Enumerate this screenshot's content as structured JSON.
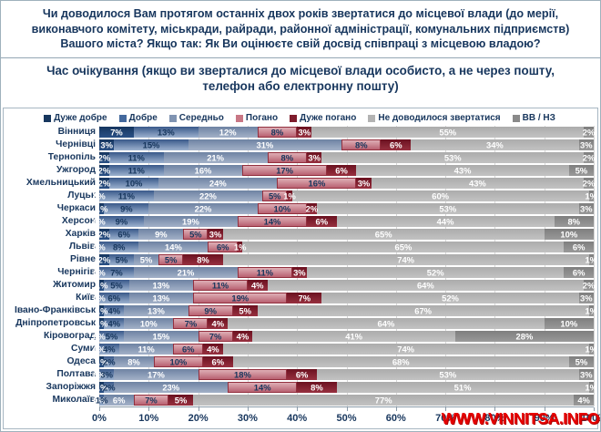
{
  "header": {
    "question": "Чи доводилося Вам протягом останніх двох років звертатися до місцевої влади (до мерії, виконавчого комітету, міськради, райради, районної адміністрації, комунальних підприємств) Вашого міста? Якщо так: Як Ви оцінюєте свій досвід співпраці з місцевою владою?",
    "subtitle": "Час очікування (якщо ви зверталися до місцевої влади особисто, а не через пошту, телефон або електронну пошту)"
  },
  "watermark": "WWW.VINNITSA.INFO",
  "chart_data": {
    "type": "bar",
    "orientation": "horizontal-stacked",
    "unit": "%",
    "xlim": [
      0,
      100
    ],
    "x_ticks": [
      "0%",
      "10%",
      "20%",
      "30%",
      "40%",
      "50%",
      "60%",
      "70%",
      "80%",
      "90%",
      "100%"
    ],
    "grid": true,
    "legend_position": "top",
    "series": [
      {
        "name": "Дуже добре",
        "color": "#17375e"
      },
      {
        "name": "Добре",
        "color": "#44699d"
      },
      {
        "name": "Середньо",
        "color": "#8094b2"
      },
      {
        "name": "Погано",
        "color": "#c87785"
      },
      {
        "name": "Дуже погано",
        "color": "#7e1c2c"
      },
      {
        "name": "Не доводилося звертатися",
        "color": "#b3b3b3"
      },
      {
        "name": "ВВ / НЗ",
        "color": "#8a8a8a"
      }
    ],
    "categories": [
      "Вінниця",
      "Чернівці",
      "Тернопіль",
      "Ужгород",
      "Хмельницький",
      "Луцьк",
      "Черкаси",
      "Херсон",
      "Харків",
      "Львів",
      "Рівне",
      "Чернігів",
      "Житомир",
      "Київ",
      "Івано-Франківськ",
      "Дніпропетровськ",
      "Кіровоград",
      "Суми",
      "Одеса",
      "Полтава",
      "Запоріжжя",
      "Миколаїв"
    ],
    "values": [
      [
        7,
        13,
        12,
        8,
        3,
        55,
        2
      ],
      [
        3,
        15,
        31,
        8,
        6,
        34,
        3
      ],
      [
        2,
        11,
        21,
        8,
        3,
        53,
        2
      ],
      [
        2,
        11,
        16,
        17,
        6,
        43,
        5
      ],
      [
        2,
        10,
        24,
        16,
        3,
        43,
        2
      ],
      [
        0,
        11,
        22,
        5,
        1,
        60,
        1
      ],
      [
        1,
        9,
        22,
        10,
        2,
        53,
        3
      ],
      [
        0,
        9,
        19,
        14,
        6,
        44,
        8
      ],
      [
        2,
        6,
        9,
        5,
        3,
        65,
        10
      ],
      [
        0,
        8,
        14,
        6,
        1,
        65,
        6
      ],
      [
        2,
        5,
        5,
        5,
        8,
        74,
        1
      ],
      [
        0,
        7,
        21,
        11,
        3,
        52,
        6
      ],
      [
        1,
        5,
        13,
        11,
        4,
        64,
        2
      ],
      [
        0,
        6,
        13,
        19,
        7,
        52,
        3
      ],
      [
        1,
        4,
        13,
        9,
        5,
        67,
        1
      ],
      [
        1,
        4,
        10,
        7,
        4,
        64,
        10
      ],
      [
        0,
        5,
        15,
        7,
        4,
        41,
        28
      ],
      [
        0,
        4,
        11,
        6,
        4,
        74,
        1
      ],
      [
        1,
        2,
        8,
        10,
        6,
        68,
        5
      ],
      [
        0,
        3,
        17,
        18,
        6,
        53,
        3
      ],
      [
        1,
        2,
        23,
        14,
        8,
        51,
        1
      ],
      [
        0,
        1,
        6,
        7,
        5,
        77,
        4
      ]
    ]
  }
}
